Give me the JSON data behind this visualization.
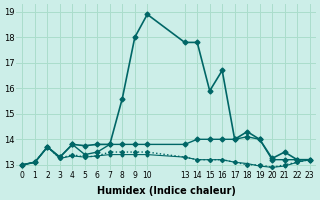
{
  "xlabel": "Humidex (Indice chaleur)",
  "bg_color": "#cceee8",
  "grid_color": "#aaddcc",
  "line_color": "#006666",
  "ylim": [
    12.8,
    19.3
  ],
  "xlim": [
    -0.5,
    23.5
  ],
  "xticks": [
    0,
    1,
    2,
    3,
    4,
    5,
    6,
    7,
    8,
    9,
    10,
    13,
    14,
    15,
    16,
    17,
    18,
    19,
    20,
    21,
    22,
    23
  ],
  "xtick_labels": [
    "0",
    "1",
    "2",
    "3",
    "4",
    "5",
    "6",
    "7",
    "8",
    "9",
    "10",
    "13",
    "14",
    "15",
    "16",
    "17",
    "18",
    "19",
    "20",
    "21",
    "22",
    "23"
  ],
  "yticks": [
    13,
    14,
    15,
    16,
    17,
    18,
    19
  ],
  "lines": [
    {
      "x": [
        0,
        1,
        2,
        3,
        4,
        5,
        6,
        7,
        8,
        9,
        10,
        13,
        14,
        15,
        16,
        17,
        18,
        19,
        20,
        21,
        22,
        23
      ],
      "y": [
        13.0,
        13.1,
        13.7,
        13.3,
        13.8,
        13.75,
        13.8,
        13.8,
        15.6,
        18.0,
        18.9,
        17.8,
        17.8,
        15.9,
        16.7,
        14.0,
        14.3,
        14.0,
        13.25,
        13.5,
        13.2,
        13.2
      ],
      "style": "-",
      "marker": "D",
      "markersize": 2.5,
      "linewidth": 1.2
    },
    {
      "x": [
        0,
        1,
        2,
        3,
        4,
        5,
        6,
        7,
        8,
        9,
        10,
        13,
        14,
        15,
        16,
        17,
        18,
        19,
        20,
        21,
        22,
        23
      ],
      "y": [
        13.0,
        13.1,
        13.7,
        13.3,
        13.8,
        13.4,
        13.5,
        13.8,
        13.8,
        13.8,
        13.8,
        13.8,
        14.0,
        14.0,
        14.0,
        14.0,
        14.1,
        14.0,
        13.2,
        13.2,
        13.2,
        13.2
      ],
      "style": "-",
      "marker": "D",
      "markersize": 2.5,
      "linewidth": 1.0
    },
    {
      "x": [
        0,
        1,
        2,
        3,
        4,
        5,
        6,
        7,
        8,
        9,
        10,
        13,
        14,
        15,
        16,
        17,
        18,
        19,
        20,
        21,
        22,
        23
      ],
      "y": [
        13.0,
        13.1,
        13.7,
        13.25,
        13.4,
        13.3,
        13.35,
        13.5,
        13.5,
        13.5,
        13.5,
        13.3,
        13.2,
        13.2,
        13.2,
        13.1,
        13.0,
        13.0,
        12.9,
        13.0,
        13.1,
        13.2
      ],
      "style": ":",
      "marker": "D",
      "markersize": 2.0,
      "linewidth": 1.0
    },
    {
      "x": [
        0,
        1,
        2,
        3,
        4,
        5,
        6,
        7,
        8,
        9,
        10,
        13,
        14,
        15,
        16,
        17,
        18,
        19,
        20,
        21,
        22,
        23
      ],
      "y": [
        13.0,
        13.1,
        13.7,
        13.25,
        13.35,
        13.3,
        13.35,
        13.4,
        13.4,
        13.4,
        13.4,
        13.3,
        13.2,
        13.2,
        13.2,
        13.1,
        13.05,
        12.95,
        12.9,
        12.95,
        13.1,
        13.2
      ],
      "style": "-",
      "marker": "D",
      "markersize": 1.5,
      "linewidth": 0.8
    }
  ]
}
